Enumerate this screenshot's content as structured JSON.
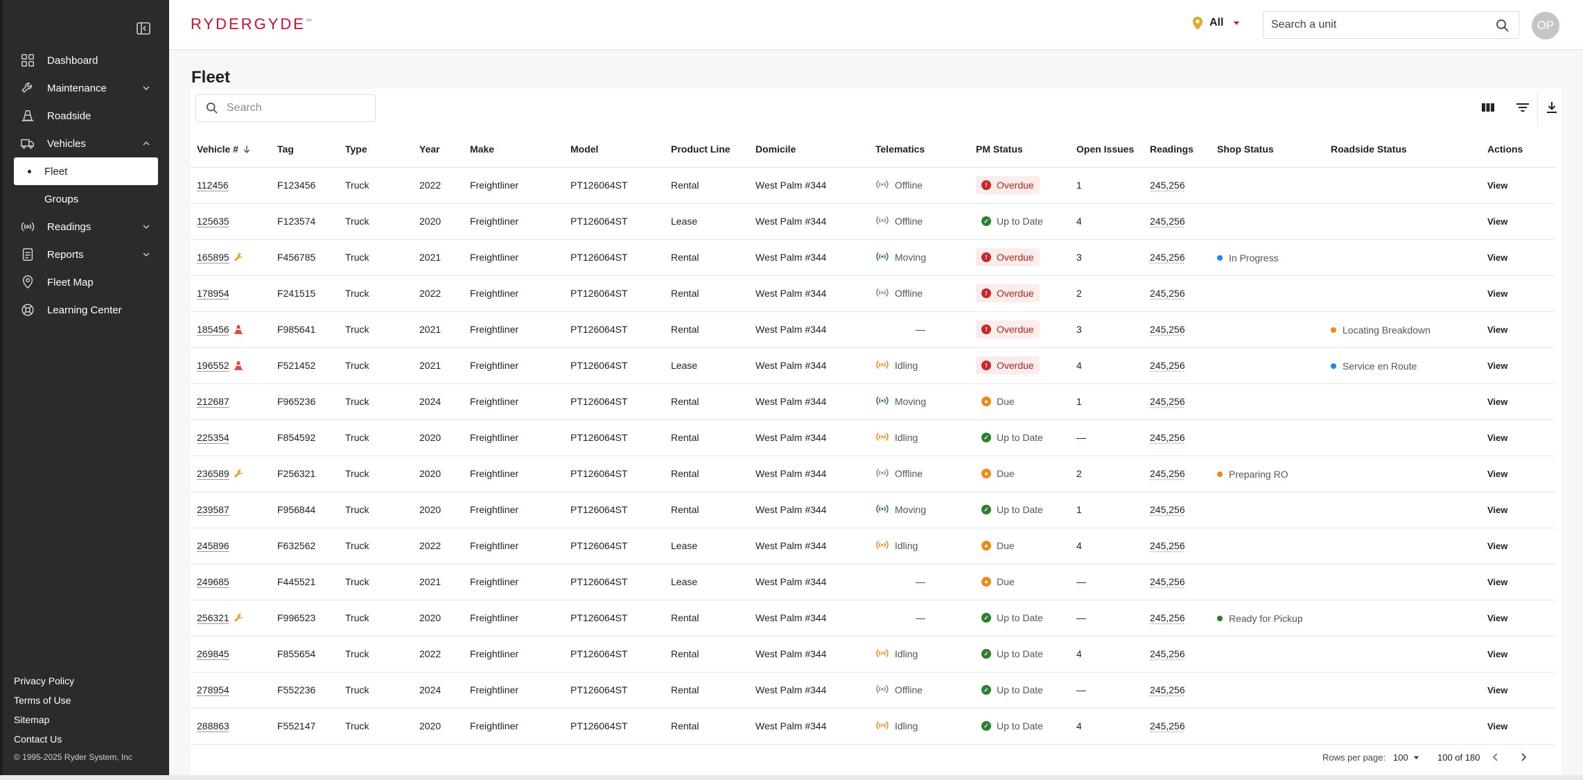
{
  "brand": {
    "name_a": "RYDER",
    "name_b": "GYDE",
    "tm": "™"
  },
  "colors": {
    "accent": "#c8102e",
    "overdue": "#c62828",
    "ok": "#2e7d32",
    "due": "#ef8a17",
    "moving": "#2e7d32",
    "idling": "#ef8a17",
    "offline": "#8a8a8a",
    "in_progress": "#1e88e5"
  },
  "sidebar": {
    "items": [
      {
        "label": "Dashboard",
        "icon": "grid-icon"
      },
      {
        "label": "Maintenance",
        "icon": "wrench-icon"
      },
      {
        "label": "Roadside",
        "icon": "cone-icon"
      },
      {
        "label": "Vehicles",
        "icon": "truck-icon"
      },
      {
        "label": "Fleet"
      },
      {
        "label": "Groups"
      },
      {
        "label": "Readings",
        "icon": "signal-icon"
      },
      {
        "label": "Reports",
        "icon": "report-icon"
      },
      {
        "label": "Fleet Map",
        "icon": "map-pin-icon"
      },
      {
        "label": "Learning Center",
        "icon": "lifebuoy-icon"
      }
    ],
    "footer": [
      "Privacy Policy",
      "Terms of Use",
      "Sitemap",
      "Contact Us"
    ],
    "copyright": "© 1995-2025 Ryder System, Inc"
  },
  "header": {
    "location": "All",
    "search_placeholder": "Search a unit",
    "avatar_initials": "OP"
  },
  "page": {
    "title": "Fleet",
    "search_placeholder": "Search"
  },
  "table": {
    "columns": [
      "Vehicle #",
      "Tag",
      "Type",
      "Year",
      "Make",
      "Model",
      "Product Line",
      "Domicile",
      "Telematics",
      "PM Status",
      "Open Issues",
      "Readings",
      "Shop Status",
      "Roadside Status",
      "Actions"
    ],
    "rows": [
      {
        "vehicle": "112456",
        "flag": "",
        "tag": "F123456",
        "type": "Truck",
        "year": "2022",
        "make": "Freightliner",
        "model": "PT126064ST",
        "product_line": "Rental",
        "domicile": "West Palm #344",
        "telematics": "Offline",
        "pm": "Overdue",
        "issues": "1",
        "readings": "245,256",
        "shop": "",
        "roadside": "",
        "action": "View"
      },
      {
        "vehicle": "125635",
        "flag": "",
        "tag": "F123574",
        "type": "Truck",
        "year": "2020",
        "make": "Freightliner",
        "model": "PT126064ST",
        "product_line": "Lease",
        "domicile": "West Palm #344",
        "telematics": "Offline",
        "pm": "Up to Date",
        "issues": "4",
        "readings": "245,256",
        "shop": "",
        "roadside": "",
        "action": "View"
      },
      {
        "vehicle": "165895",
        "flag": "wrench",
        "tag": "F456785",
        "type": "Truck",
        "year": "2021",
        "make": "Freightliner",
        "model": "PT126064ST",
        "product_line": "Rental",
        "domicile": "West Palm #344",
        "telematics": "Moving",
        "pm": "Overdue",
        "issues": "3",
        "readings": "245,256",
        "shop": "In Progress",
        "roadside": "",
        "action": "View"
      },
      {
        "vehicle": "178954",
        "flag": "",
        "tag": "F241515",
        "type": "Truck",
        "year": "2022",
        "make": "Freightliner",
        "model": "PT126064ST",
        "product_line": "Rental",
        "domicile": "West Palm #344",
        "telematics": "Offline",
        "pm": "Overdue",
        "issues": "2",
        "readings": "245,256",
        "shop": "",
        "roadside": "",
        "action": "View"
      },
      {
        "vehicle": "185456",
        "flag": "cone",
        "tag": "F985641",
        "type": "Truck",
        "year": "2021",
        "make": "Freightliner",
        "model": "PT126064ST",
        "product_line": "Rental",
        "domicile": "West Palm #344",
        "telematics": "—",
        "pm": "Overdue",
        "issues": "3",
        "readings": "245,256",
        "shop": "",
        "roadside": "Locating Breakdown",
        "action": "View"
      },
      {
        "vehicle": "196552",
        "flag": "cone",
        "tag": "F521452",
        "type": "Truck",
        "year": "2021",
        "make": "Freightliner",
        "model": "PT126064ST",
        "product_line": "Lease",
        "domicile": "West Palm #344",
        "telematics": "Idling",
        "pm": "Overdue",
        "issues": "4",
        "readings": "245,256",
        "shop": "",
        "roadside": "Service en Route",
        "action": "View"
      },
      {
        "vehicle": "212687",
        "flag": "",
        "tag": "F965236",
        "type": "Truck",
        "year": "2024",
        "make": "Freightliner",
        "model": "PT126064ST",
        "product_line": "Rental",
        "domicile": "West Palm #344",
        "telematics": "Moving",
        "pm": "Due",
        "issues": "1",
        "readings": "245,256",
        "shop": "",
        "roadside": "",
        "action": "View"
      },
      {
        "vehicle": "225354",
        "flag": "",
        "tag": "F854592",
        "type": "Truck",
        "year": "2020",
        "make": "Freightliner",
        "model": "PT126064ST",
        "product_line": "Rental",
        "domicile": "West Palm #344",
        "telematics": "Idling",
        "pm": "Up to Date",
        "issues": "—",
        "readings": "245,256",
        "shop": "",
        "roadside": "",
        "action": "View"
      },
      {
        "vehicle": "236589",
        "flag": "wrench",
        "tag": "F256321",
        "type": "Truck",
        "year": "2020",
        "make": "Freightliner",
        "model": "PT126064ST",
        "product_line": "Rental",
        "domicile": "West Palm #344",
        "telematics": "Offline",
        "pm": "Due",
        "issues": "2",
        "readings": "245,256",
        "shop": "Preparing RO",
        "roadside": "",
        "action": "View"
      },
      {
        "vehicle": "239587",
        "flag": "",
        "tag": "F956844",
        "type": "Truck",
        "year": "2020",
        "make": "Freightliner",
        "model": "PT126064ST",
        "product_line": "Rental",
        "domicile": "West Palm #344",
        "telematics": "Moving",
        "pm": "Up to Date",
        "issues": "1",
        "readings": "245,256",
        "shop": "",
        "roadside": "",
        "action": "View"
      },
      {
        "vehicle": "245896",
        "flag": "",
        "tag": "F632562",
        "type": "Truck",
        "year": "2022",
        "make": "Freightliner",
        "model": "PT126064ST",
        "product_line": "Lease",
        "domicile": "West Palm #344",
        "telematics": "Idling",
        "pm": "Due",
        "issues": "4",
        "readings": "245,256",
        "shop": "",
        "roadside": "",
        "action": "View"
      },
      {
        "vehicle": "249685",
        "flag": "",
        "tag": "F445521",
        "type": "Truck",
        "year": "2021",
        "make": "Freightliner",
        "model": "PT126064ST",
        "product_line": "Lease",
        "domicile": "West Palm #344",
        "telematics": "—",
        "pm": "Due",
        "issues": "—",
        "readings": "245,256",
        "shop": "",
        "roadside": "",
        "action": "View"
      },
      {
        "vehicle": "256321",
        "flag": "wrench",
        "tag": "F996523",
        "type": "Truck",
        "year": "2020",
        "make": "Freightliner",
        "model": "PT126064ST",
        "product_line": "Rental",
        "domicile": "West Palm #344",
        "telematics": "—",
        "pm": "Up to Date",
        "issues": "—",
        "readings": "245,256",
        "shop": "Ready for Pickup",
        "roadside": "",
        "action": "View"
      },
      {
        "vehicle": "269845",
        "flag": "",
        "tag": "F855654",
        "type": "Truck",
        "year": "2022",
        "make": "Freightliner",
        "model": "PT126064ST",
        "product_line": "Rental",
        "domicile": "West Palm #344",
        "telematics": "Idling",
        "pm": "Up to Date",
        "issues": "4",
        "readings": "245,256",
        "shop": "",
        "roadside": "",
        "action": "View"
      },
      {
        "vehicle": "278954",
        "flag": "",
        "tag": "F552236",
        "type": "Truck",
        "year": "2024",
        "make": "Freightliner",
        "model": "PT126064ST",
        "product_line": "Rental",
        "domicile": "West Palm #344",
        "telematics": "Offline",
        "pm": "Up to Date",
        "issues": "—",
        "readings": "245,256",
        "shop": "",
        "roadside": "",
        "action": "View"
      },
      {
        "vehicle": "288863",
        "flag": "",
        "tag": "F552147",
        "type": "Truck",
        "year": "2020",
        "make": "Freightliner",
        "model": "PT126064ST",
        "product_line": "Rental",
        "domicile": "West Palm #344",
        "telematics": "Idling",
        "pm": "Up to Date",
        "issues": "4",
        "readings": "245,256",
        "shop": "",
        "roadside": "",
        "action": "View"
      }
    ]
  },
  "pagination": {
    "rows_per_page_label": "Rows per page:",
    "rows_per_page": "100",
    "range": "100 of 180"
  }
}
